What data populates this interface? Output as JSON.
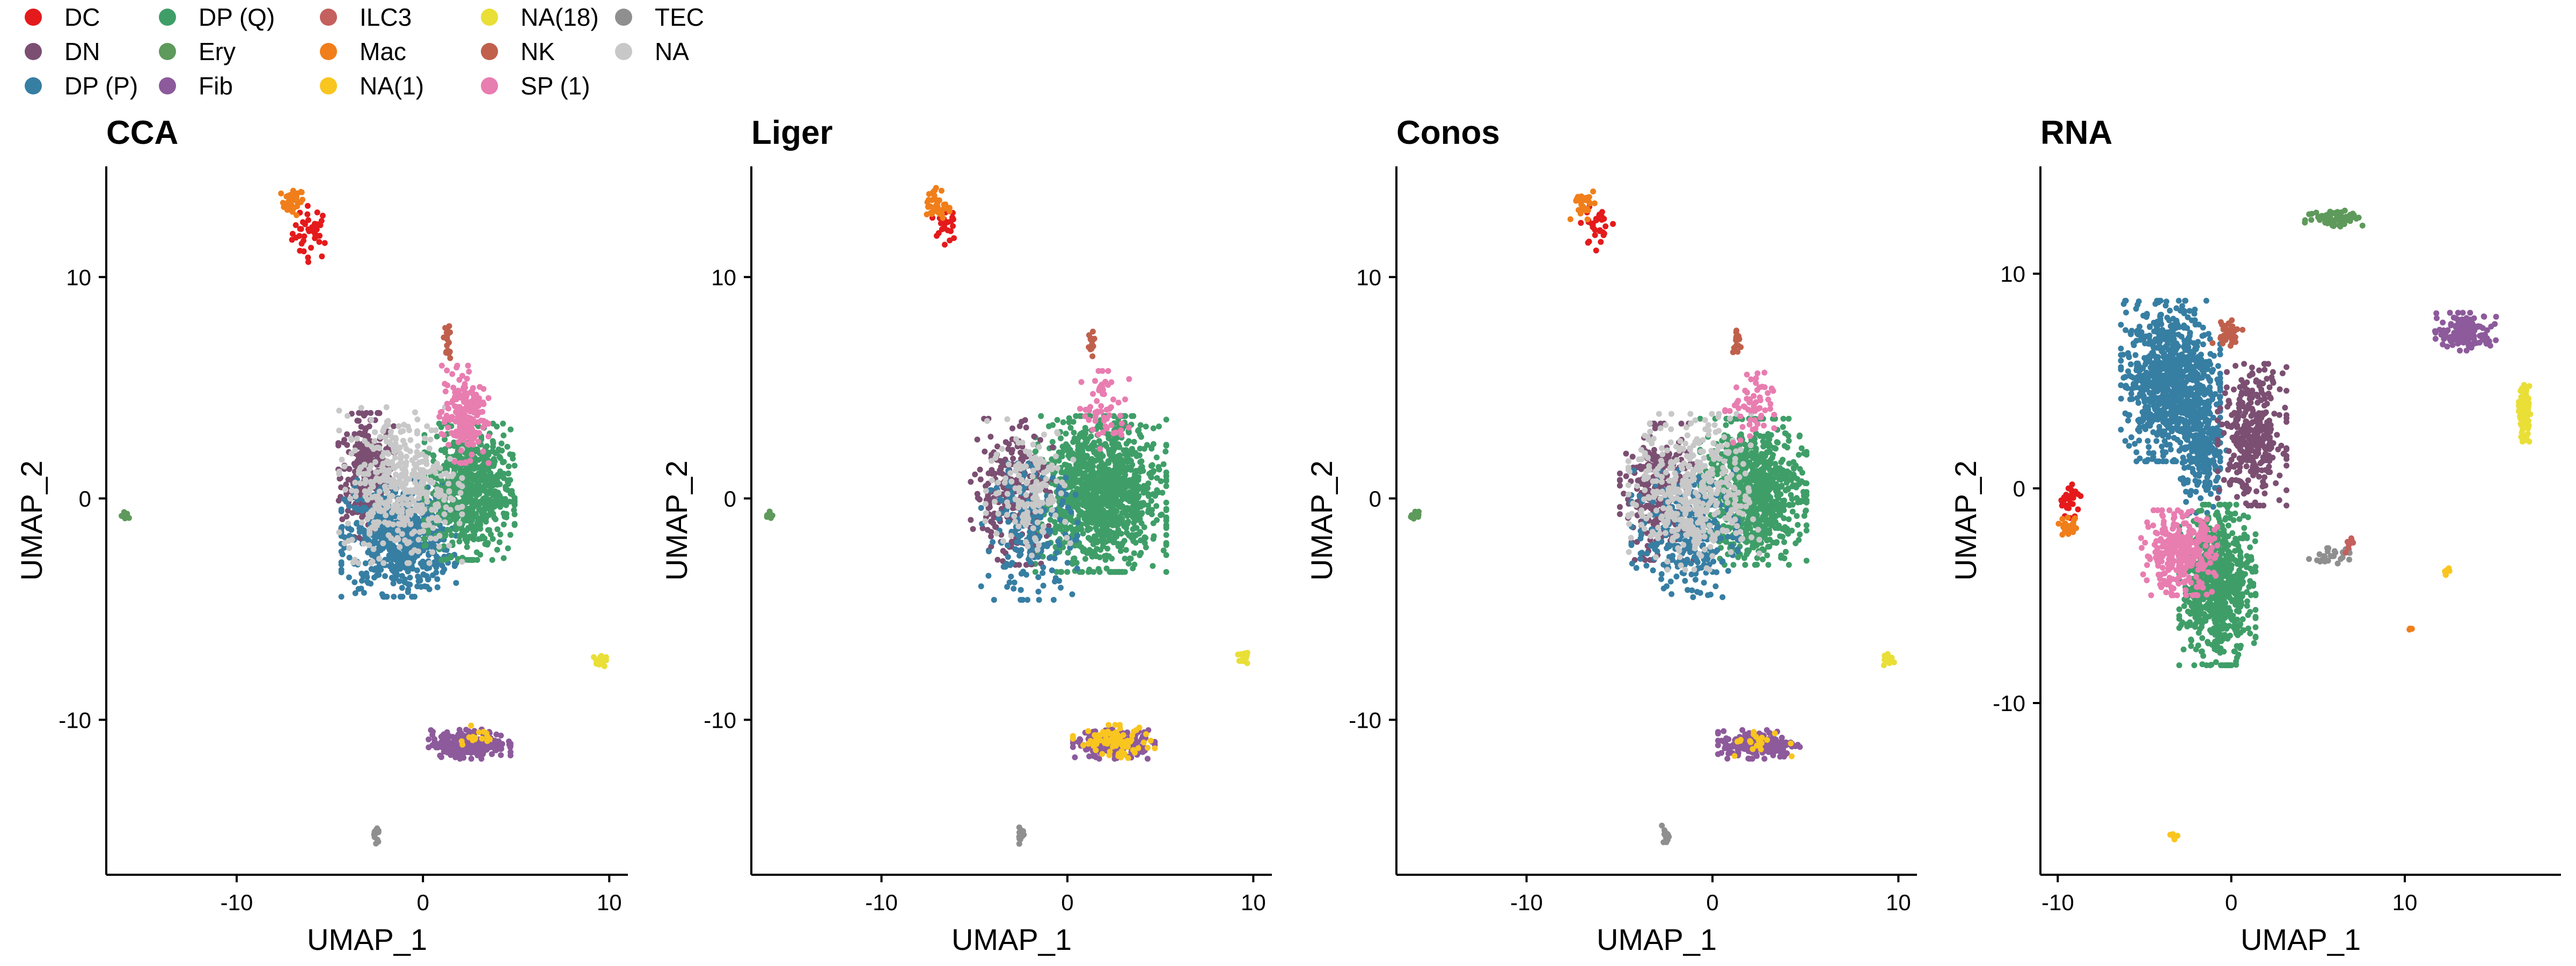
{
  "chart_data": [
    {
      "type": "scatter",
      "title": "CCA",
      "xlabel": "UMAP_1",
      "ylabel": "UMAP_2",
      "xlim": [
        -17,
        11
      ],
      "ylim": [
        -17,
        15
      ],
      "xticks": [
        -10,
        0,
        10
      ],
      "yticks": [
        -10,
        0,
        10
      ],
      "clusters": [
        {
          "label": "DC",
          "cx": -6.0,
          "cy": 12.0,
          "sx": 0.5,
          "sy": 0.6,
          "n": 40
        },
        {
          "label": "Mac",
          "cx": -7.0,
          "cy": 13.4,
          "sx": 0.3,
          "sy": 0.3,
          "n": 30
        },
        {
          "label": "DN",
          "cx": -3.0,
          "cy": 1.0,
          "sx": 0.7,
          "sy": 1.3,
          "n": 320
        },
        {
          "label": "DP (P)",
          "cx": -1.3,
          "cy": -1.8,
          "sx": 1.4,
          "sy": 1.2,
          "n": 650
        },
        {
          "label": "DP (Q)",
          "cx": 2.5,
          "cy": 0.3,
          "sx": 1.1,
          "sy": 1.4,
          "n": 650
        },
        {
          "label": "NA",
          "cx": -1.2,
          "cy": 0.6,
          "sx": 1.5,
          "sy": 1.6,
          "n": 420
        },
        {
          "label": "SP (1)",
          "cx": 2.2,
          "cy": 3.8,
          "sx": 0.6,
          "sy": 1.0,
          "n": 180
        },
        {
          "label": "NK",
          "cx": 1.3,
          "cy": 7.0,
          "sx": 0.1,
          "sy": 0.4,
          "n": 20
        },
        {
          "label": "Ery",
          "cx": -16.0,
          "cy": -0.8,
          "sx": 0.1,
          "sy": 0.1,
          "n": 15
        },
        {
          "label": "Fib",
          "cx": 2.5,
          "cy": -11.1,
          "sx": 1.0,
          "sy": 0.3,
          "n": 230
        },
        {
          "label": "NA(1)",
          "cx": 2.8,
          "cy": -10.7,
          "sx": 0.5,
          "sy": 0.2,
          "n": 15
        },
        {
          "label": "NA(18)",
          "cx": 9.5,
          "cy": -7.3,
          "sx": 0.15,
          "sy": 0.15,
          "n": 15
        },
        {
          "label": "TEC",
          "cx": -2.5,
          "cy": -15.2,
          "sx": 0.1,
          "sy": 0.2,
          "n": 15
        }
      ]
    },
    {
      "type": "scatter",
      "title": "Liger",
      "xlabel": "UMAP_1",
      "ylabel": "UMAP_2",
      "xlim": [
        -17,
        11
      ],
      "ylim": [
        -17,
        15
      ],
      "xticks": [
        -10,
        0,
        10
      ],
      "yticks": [
        -10,
        0,
        10
      ],
      "clusters": [
        {
          "label": "DC",
          "cx": -6.6,
          "cy": 12.4,
          "sx": 0.3,
          "sy": 0.5,
          "n": 25
        },
        {
          "label": "Mac",
          "cx": -7.0,
          "cy": 13.2,
          "sx": 0.3,
          "sy": 0.4,
          "n": 35
        },
        {
          "label": "DP (Q)",
          "cx": 1.8,
          "cy": 0.2,
          "sx": 1.6,
          "sy": 1.6,
          "n": 1200
        },
        {
          "label": "DN",
          "cx": -3.0,
          "cy": 0.3,
          "sx": 1.0,
          "sy": 1.5,
          "n": 260
        },
        {
          "label": "DP (P)",
          "cx": -2.0,
          "cy": -1.5,
          "sx": 1.2,
          "sy": 1.4,
          "n": 200
        },
        {
          "label": "NA",
          "cx": -2.0,
          "cy": 0.5,
          "sx": 1.1,
          "sy": 1.4,
          "n": 150
        },
        {
          "label": "SP (1)",
          "cx": 2.0,
          "cy": 4.0,
          "sx": 0.6,
          "sy": 0.8,
          "n": 60
        },
        {
          "label": "NK",
          "cx": 1.3,
          "cy": 7.0,
          "sx": 0.1,
          "sy": 0.4,
          "n": 15
        },
        {
          "label": "Ery",
          "cx": -16.0,
          "cy": -0.8,
          "sx": 0.1,
          "sy": 0.1,
          "n": 15
        },
        {
          "label": "Fib",
          "cx": 2.5,
          "cy": -11.1,
          "sx": 1.0,
          "sy": 0.3,
          "n": 170
        },
        {
          "label": "NA(1)",
          "cx": 2.5,
          "cy": -11.0,
          "sx": 1.0,
          "sy": 0.35,
          "n": 80
        },
        {
          "label": "NA(18)",
          "cx": 9.5,
          "cy": -7.3,
          "sx": 0.15,
          "sy": 0.15,
          "n": 15
        },
        {
          "label": "TEC",
          "cx": -2.5,
          "cy": -15.2,
          "sx": 0.1,
          "sy": 0.2,
          "n": 15
        }
      ]
    },
    {
      "type": "scatter",
      "title": "Conos",
      "xlabel": "UMAP_1",
      "ylabel": "UMAP_2",
      "xlim": [
        -17,
        11
      ],
      "ylim": [
        -17,
        15
      ],
      "xticks": [
        -10,
        0,
        10
      ],
      "yticks": [
        -10,
        0,
        10
      ],
      "clusters": [
        {
          "label": "DC",
          "cx": -6.2,
          "cy": 12.3,
          "sx": 0.4,
          "sy": 0.5,
          "n": 30
        },
        {
          "label": "Mac",
          "cx": -7.0,
          "cy": 13.3,
          "sx": 0.3,
          "sy": 0.4,
          "n": 30
        },
        {
          "label": "DP (Q)",
          "cx": 2.2,
          "cy": 0.3,
          "sx": 1.3,
          "sy": 1.5,
          "n": 800
        },
        {
          "label": "DN",
          "cx": -3.0,
          "cy": 0.3,
          "sx": 0.9,
          "sy": 1.4,
          "n": 280
        },
        {
          "label": "DP (P)",
          "cx": -1.5,
          "cy": -1.6,
          "sx": 1.3,
          "sy": 1.3,
          "n": 280
        },
        {
          "label": "NA",
          "cx": -1.0,
          "cy": 0.3,
          "sx": 1.6,
          "sy": 1.6,
          "n": 450
        },
        {
          "label": "SP (1)",
          "cx": 2.0,
          "cy": 4.0,
          "sx": 0.6,
          "sy": 0.8,
          "n": 60
        },
        {
          "label": "NK",
          "cx": 1.3,
          "cy": 7.0,
          "sx": 0.1,
          "sy": 0.4,
          "n": 15
        },
        {
          "label": "Ery",
          "cx": -16.0,
          "cy": -0.8,
          "sx": 0.1,
          "sy": 0.1,
          "n": 15
        },
        {
          "label": "Fib",
          "cx": 2.5,
          "cy": -11.1,
          "sx": 1.0,
          "sy": 0.3,
          "n": 200
        },
        {
          "label": "NA(1)",
          "cx": 2.5,
          "cy": -11.0,
          "sx": 0.8,
          "sy": 0.3,
          "n": 20
        },
        {
          "label": "NA(18)",
          "cx": 9.5,
          "cy": -7.3,
          "sx": 0.15,
          "sy": 0.15,
          "n": 15
        },
        {
          "label": "TEC",
          "cx": -2.5,
          "cy": -15.2,
          "sx": 0.1,
          "sy": 0.2,
          "n": 15
        }
      ]
    },
    {
      "type": "scatter",
      "title": "RNA",
      "xlabel": "UMAP_1",
      "ylabel": "UMAP_2",
      "xlim": [
        -11,
        19
      ],
      "ylim": [
        -18,
        15
      ],
      "xticks": [
        -10,
        0,
        10
      ],
      "yticks": [
        -10,
        0,
        10
      ],
      "clusters": [
        {
          "label": "DP (P)",
          "cx": -3.5,
          "cy": 5.0,
          "sx": 1.3,
          "sy": 1.7,
          "n": 900
        },
        {
          "label": "DP (P)",
          "cx": -1.6,
          "cy": 1.5,
          "sx": 0.6,
          "sy": 1.2,
          "n": 200
        },
        {
          "label": "DN",
          "cx": 1.2,
          "cy": 2.5,
          "sx": 0.9,
          "sy": 1.5,
          "n": 350
        },
        {
          "label": "DP (Q)",
          "cx": -0.8,
          "cy": -4.5,
          "sx": 1.0,
          "sy": 1.7,
          "n": 700
        },
        {
          "label": "SP (1)",
          "cx": -3.0,
          "cy": -3.0,
          "sx": 1.0,
          "sy": 0.9,
          "n": 320
        },
        {
          "label": "NK",
          "cx": -0.2,
          "cy": 7.3,
          "sx": 0.4,
          "sy": 0.3,
          "n": 35
        },
        {
          "label": "Ery",
          "cx": 6.0,
          "cy": 12.6,
          "sx": 0.8,
          "sy": 0.2,
          "n": 70
        },
        {
          "label": "Fib",
          "cx": 13.5,
          "cy": 7.3,
          "sx": 0.8,
          "sy": 0.4,
          "n": 140
        },
        {
          "label": "NA(18)",
          "cx": 16.9,
          "cy": 3.5,
          "sx": 0.15,
          "sy": 0.6,
          "n": 110
        },
        {
          "label": "DC",
          "cx": -9.3,
          "cy": -0.5,
          "sx": 0.3,
          "sy": 0.4,
          "n": 30
        },
        {
          "label": "Mac",
          "cx": -9.4,
          "cy": -1.8,
          "sx": 0.3,
          "sy": 0.2,
          "n": 25
        },
        {
          "label": "TEC",
          "cx": 5.8,
          "cy": -3.2,
          "sx": 0.6,
          "sy": 0.2,
          "n": 25
        },
        {
          "label": "ILC3",
          "cx": 6.8,
          "cy": -2.6,
          "sx": 0.1,
          "sy": 0.2,
          "n": 8
        },
        {
          "label": "NA(1)",
          "cx": 12.4,
          "cy": -4.0,
          "sx": 0.1,
          "sy": 0.15,
          "n": 6
        },
        {
          "label": "NA(1)",
          "cx": -3.3,
          "cy": -16.2,
          "sx": 0.1,
          "sy": 0.1,
          "n": 6
        },
        {
          "label": "Mac",
          "cx": 10.3,
          "cy": -6.5,
          "sx": 0.05,
          "sy": 0.05,
          "n": 3
        }
      ]
    }
  ],
  "legend": [
    {
      "label": "DC",
      "color": "#E41A1C"
    },
    {
      "label": "DN",
      "color": "#7B4F72"
    },
    {
      "label": "DP (P)",
      "color": "#377EA3"
    },
    {
      "label": "DP (Q)",
      "color": "#3F9E68"
    },
    {
      "label": "Ery",
      "color": "#5E9A5B"
    },
    {
      "label": "Fib",
      "color": "#8D5A9B"
    },
    {
      "label": "ILC3",
      "color": "#C4605E"
    },
    {
      "label": "Mac",
      "color": "#F07E1A"
    },
    {
      "label": "NA(1)",
      "color": "#F9C51F"
    },
    {
      "label": "NA(18)",
      "color": "#E9DF37"
    },
    {
      "label": "NK",
      "color": "#C0604C"
    },
    {
      "label": "SP (1)",
      "color": "#E87DB0"
    },
    {
      "label": "TEC",
      "color": "#8F8F8F"
    },
    {
      "label": "NA",
      "color": "#C8C8C8"
    }
  ]
}
